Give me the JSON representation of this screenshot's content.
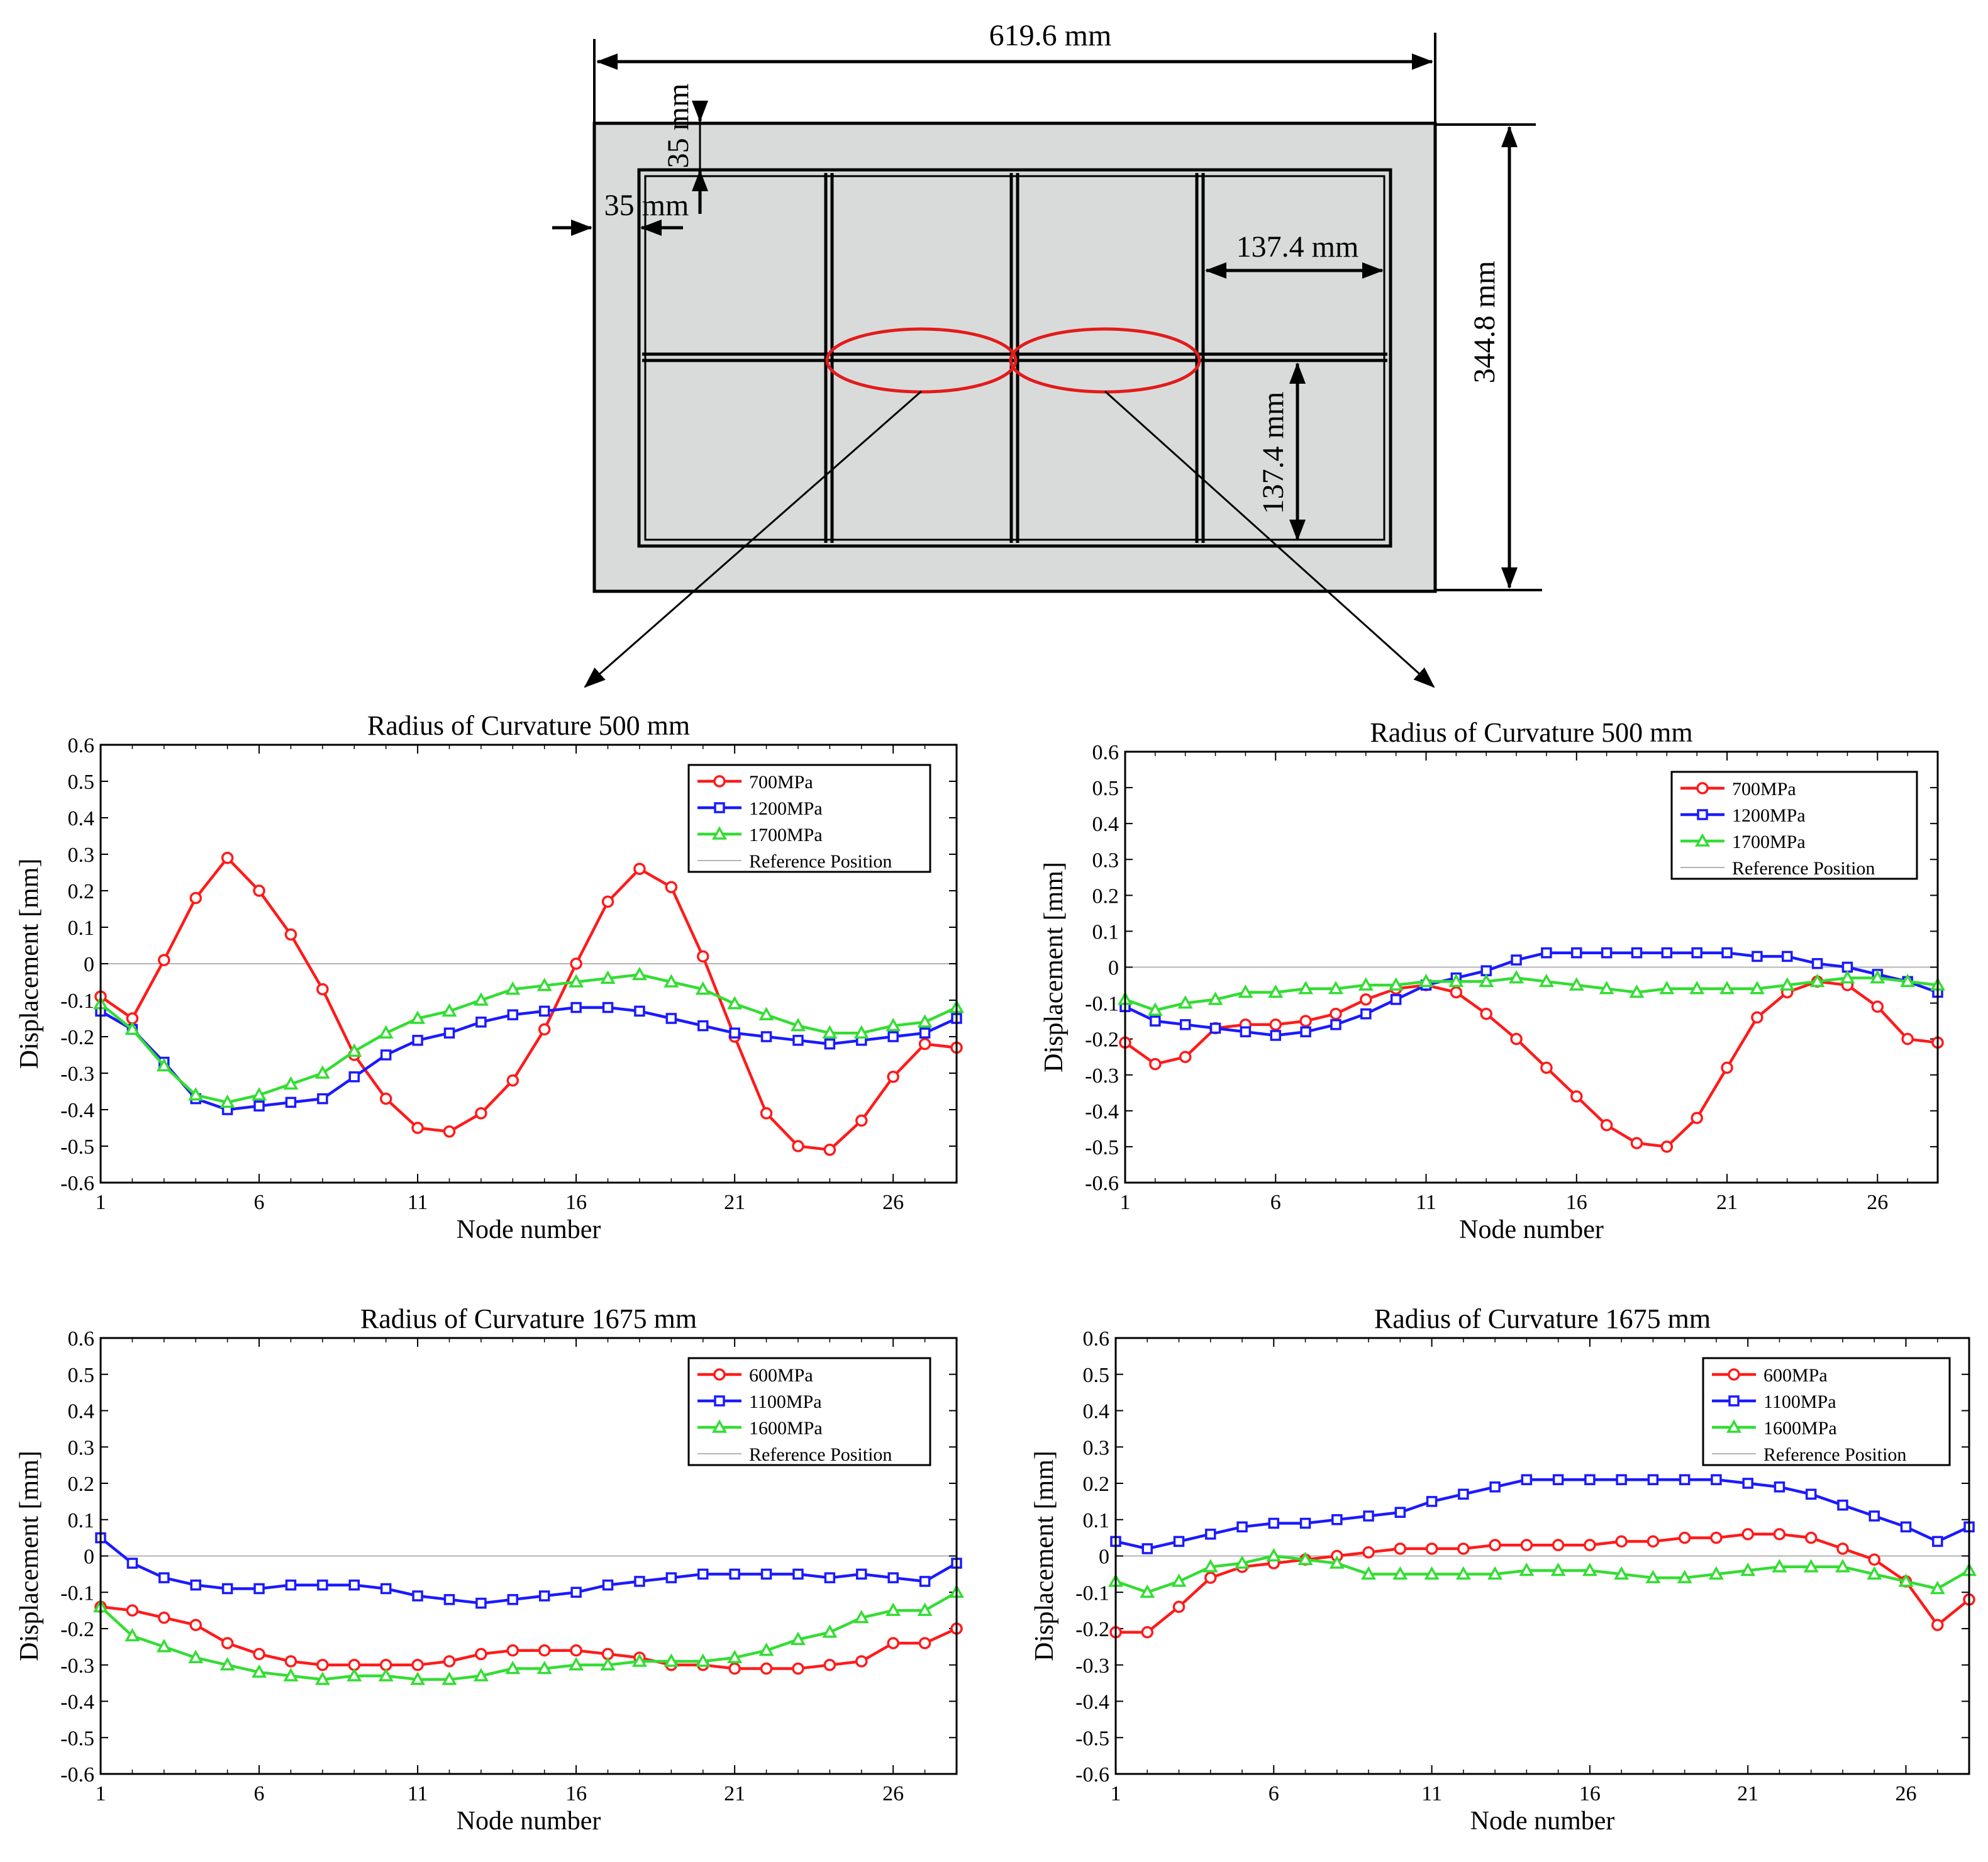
{
  "schematic": {
    "dim_width": "619.6 mm",
    "dim_height": "344.8 mm",
    "dim_margin_top": "35 mm",
    "dim_margin_left": "35 mm",
    "dim_cell_width": "137.4 mm",
    "dim_cell_height": "137.4 mm",
    "plate_color": "#d9dbdb",
    "highlight_color": "#e31b1b"
  },
  "colors": {
    "red": "#ff1a1a",
    "blue": "#1a1aff",
    "green": "#33dd33",
    "reference": "#b4b4b4"
  },
  "chart_data": [
    {
      "type": "line",
      "title": "Radius of Curvature 500 mm",
      "xlabel": "Node number",
      "ylabel": "Displacement [mm]",
      "xlim": [
        1,
        28
      ],
      "ylim": [
        -0.6,
        0.6
      ],
      "xticks": [
        1,
        6,
        11,
        16,
        21,
        26
      ],
      "yticks": [
        "0.6",
        "0.5",
        "0.4",
        "0.3",
        "0.2",
        "0.1",
        "0",
        "-0.1",
        "-0.2",
        "-0.3",
        "-0.4",
        "-0.5",
        "-0.6"
      ],
      "legend_position": "top-right",
      "reference_label": "Reference Position",
      "x": [
        1,
        2,
        3,
        4,
        5,
        6,
        7,
        8,
        9,
        10,
        11,
        12,
        13,
        14,
        15,
        16,
        17,
        18,
        19,
        20,
        21,
        22,
        23,
        24,
        25,
        26,
        27,
        28
      ],
      "series": [
        {
          "name": "700MPa",
          "color": "red",
          "marker": "circle",
          "values": [
            -0.09,
            -0.15,
            0.01,
            0.18,
            0.29,
            0.2,
            0.08,
            -0.07,
            -0.25,
            -0.37,
            -0.45,
            -0.46,
            -0.41,
            -0.32,
            -0.18,
            0.0,
            0.17,
            0.26,
            0.21,
            0.02,
            -0.2,
            -0.41,
            -0.5,
            -0.51,
            -0.43,
            -0.31,
            -0.22,
            -0.23
          ]
        },
        {
          "name": "1200MPa",
          "color": "blue",
          "marker": "square",
          "values": [
            -0.13,
            -0.18,
            -0.27,
            -0.37,
            -0.4,
            -0.39,
            -0.38,
            -0.37,
            -0.31,
            -0.25,
            -0.21,
            -0.19,
            -0.16,
            -0.14,
            -0.13,
            -0.12,
            -0.12,
            -0.13,
            -0.15,
            -0.17,
            -0.19,
            -0.2,
            -0.21,
            -0.22,
            -0.21,
            -0.2,
            -0.19,
            -0.15
          ]
        },
        {
          "name": "1700MPa",
          "color": "green",
          "marker": "triangle",
          "values": [
            -0.11,
            -0.18,
            -0.28,
            -0.36,
            -0.38,
            -0.36,
            -0.33,
            -0.3,
            -0.24,
            -0.19,
            -0.15,
            -0.13,
            -0.1,
            -0.07,
            -0.06,
            -0.05,
            -0.04,
            -0.03,
            -0.05,
            -0.07,
            -0.11,
            -0.14,
            -0.17,
            -0.19,
            -0.19,
            -0.17,
            -0.16,
            -0.12
          ]
        }
      ]
    },
    {
      "type": "line",
      "title": "Radius of Curvature 500 mm",
      "xlabel": "Node number",
      "ylabel": "Displacement [mm]",
      "xlim": [
        1,
        28
      ],
      "ylim": [
        -0.6,
        0.6
      ],
      "xticks": [
        1,
        6,
        11,
        16,
        21,
        26
      ],
      "yticks": [
        "0.6",
        "0.5",
        "0.4",
        "0.3",
        "0.2",
        "0.1",
        "0",
        "-0.1",
        "-0.2",
        "-0.3",
        "-0.4",
        "-0.5",
        "-0.6"
      ],
      "legend_position": "top-right",
      "reference_label": "Reference Position",
      "x": [
        1,
        2,
        3,
        4,
        5,
        6,
        7,
        8,
        9,
        10,
        11,
        12,
        13,
        14,
        15,
        16,
        17,
        18,
        19,
        20,
        21,
        22,
        23,
        24,
        25,
        26,
        27,
        28
      ],
      "series": [
        {
          "name": "700MPa",
          "color": "red",
          "marker": "circle",
          "values": [
            -0.21,
            -0.27,
            -0.25,
            -0.17,
            -0.16,
            -0.16,
            -0.15,
            -0.13,
            -0.09,
            -0.06,
            -0.05,
            -0.07,
            -0.13,
            -0.2,
            -0.28,
            -0.36,
            -0.44,
            -0.49,
            -0.5,
            -0.42,
            -0.28,
            -0.14,
            -0.07,
            -0.04,
            -0.05,
            -0.11,
            -0.2,
            -0.21
          ]
        },
        {
          "name": "1200MPa",
          "color": "blue",
          "marker": "square",
          "values": [
            -0.11,
            -0.15,
            -0.16,
            -0.17,
            -0.18,
            -0.19,
            -0.18,
            -0.16,
            -0.13,
            -0.09,
            -0.05,
            -0.03,
            -0.01,
            0.02,
            0.04,
            0.04,
            0.04,
            0.04,
            0.04,
            0.04,
            0.04,
            0.03,
            0.03,
            0.01,
            0.0,
            -0.02,
            -0.04,
            -0.07
          ]
        },
        {
          "name": "1700MPa",
          "color": "green",
          "marker": "triangle",
          "values": [
            -0.09,
            -0.12,
            -0.1,
            -0.09,
            -0.07,
            -0.07,
            -0.06,
            -0.06,
            -0.05,
            -0.05,
            -0.04,
            -0.04,
            -0.04,
            -0.03,
            -0.04,
            -0.05,
            -0.06,
            -0.07,
            -0.06,
            -0.06,
            -0.06,
            -0.06,
            -0.05,
            -0.04,
            -0.03,
            -0.03,
            -0.04,
            -0.05
          ]
        }
      ]
    },
    {
      "type": "line",
      "title": "Radius of Curvature 1675 mm",
      "xlabel": "Node number",
      "ylabel": "Displacement [mm]",
      "xlim": [
        1,
        28
      ],
      "ylim": [
        -0.6,
        0.6
      ],
      "xticks": [
        1,
        6,
        11,
        16,
        21,
        26
      ],
      "yticks": [
        "0.6",
        "0.5",
        "0.4",
        "0.3",
        "0.2",
        "0.1",
        "0",
        "-0.1",
        "-0.2",
        "-0.3",
        "-0.4",
        "-0.5",
        "-0.6"
      ],
      "legend_position": "top-right",
      "reference_label": "Reference Position",
      "x": [
        1,
        2,
        3,
        4,
        5,
        6,
        7,
        8,
        9,
        10,
        11,
        12,
        13,
        14,
        15,
        16,
        17,
        18,
        19,
        20,
        21,
        22,
        23,
        24,
        25,
        26,
        27,
        28
      ],
      "series": [
        {
          "name": "600MPa",
          "color": "red",
          "marker": "circle",
          "values": [
            -0.14,
            -0.15,
            -0.17,
            -0.19,
            -0.24,
            -0.27,
            -0.29,
            -0.3,
            -0.3,
            -0.3,
            -0.3,
            -0.29,
            -0.27,
            -0.26,
            -0.26,
            -0.26,
            -0.27,
            -0.28,
            -0.3,
            -0.3,
            -0.31,
            -0.31,
            -0.31,
            -0.3,
            -0.29,
            -0.24,
            -0.24,
            -0.2
          ]
        },
        {
          "name": "1100MPa",
          "color": "blue",
          "marker": "square",
          "values": [
            0.05,
            -0.02,
            -0.06,
            -0.08,
            -0.09,
            -0.09,
            -0.08,
            -0.08,
            -0.08,
            -0.09,
            -0.11,
            -0.12,
            -0.13,
            -0.12,
            -0.11,
            -0.1,
            -0.08,
            -0.07,
            -0.06,
            -0.05,
            -0.05,
            -0.05,
            -0.05,
            -0.06,
            -0.05,
            -0.06,
            -0.07,
            -0.02
          ]
        },
        {
          "name": "1600MPa",
          "color": "green",
          "marker": "triangle",
          "values": [
            -0.14,
            -0.22,
            -0.25,
            -0.28,
            -0.3,
            -0.32,
            -0.33,
            -0.34,
            -0.33,
            -0.33,
            -0.34,
            -0.34,
            -0.33,
            -0.31,
            -0.31,
            -0.3,
            -0.3,
            -0.29,
            -0.29,
            -0.29,
            -0.28,
            -0.26,
            -0.23,
            -0.21,
            -0.17,
            -0.15,
            -0.15,
            -0.1
          ]
        }
      ]
    },
    {
      "type": "line",
      "title": "Radius of Curvature 1675 mm",
      "xlabel": "Node number",
      "ylabel": "Displacement [mm]",
      "xlim": [
        1,
        28
      ],
      "ylim": [
        -0.6,
        0.6
      ],
      "xticks": [
        1,
        6,
        11,
        16,
        21,
        26
      ],
      "yticks": [
        "0.6",
        "0.5",
        "0.4",
        "0.3",
        "0.2",
        "0.1",
        "0",
        "-0.1",
        "-0.2",
        "-0.3",
        "-0.4",
        "-0.5",
        "-0.6"
      ],
      "legend_position": "top-right",
      "reference_label": "Reference Position",
      "x": [
        1,
        2,
        3,
        4,
        5,
        6,
        7,
        8,
        9,
        10,
        11,
        12,
        13,
        14,
        15,
        16,
        17,
        18,
        19,
        20,
        21,
        22,
        23,
        24,
        25,
        26,
        27,
        28
      ],
      "series": [
        {
          "name": "600MPa",
          "color": "red",
          "marker": "circle",
          "values": [
            -0.21,
            -0.21,
            -0.14,
            -0.06,
            -0.03,
            -0.02,
            -0.01,
            0.0,
            0.01,
            0.02,
            0.02,
            0.02,
            0.03,
            0.03,
            0.03,
            0.03,
            0.04,
            0.04,
            0.05,
            0.05,
            0.06,
            0.06,
            0.05,
            0.02,
            -0.01,
            -0.07,
            -0.19,
            -0.12
          ]
        },
        {
          "name": "1100MPa",
          "color": "blue",
          "marker": "square",
          "values": [
            0.04,
            0.02,
            0.04,
            0.06,
            0.08,
            0.09,
            0.09,
            0.1,
            0.11,
            0.12,
            0.15,
            0.17,
            0.19,
            0.21,
            0.21,
            0.21,
            0.21,
            0.21,
            0.21,
            0.21,
            0.2,
            0.19,
            0.17,
            0.14,
            0.11,
            0.08,
            0.04,
            0.08
          ]
        },
        {
          "name": "1600MPa",
          "color": "green",
          "marker": "triangle",
          "values": [
            -0.07,
            -0.1,
            -0.07,
            -0.03,
            -0.02,
            0.0,
            -0.01,
            -0.02,
            -0.05,
            -0.05,
            -0.05,
            -0.05,
            -0.05,
            -0.04,
            -0.04,
            -0.04,
            -0.05,
            -0.06,
            -0.06,
            -0.05,
            -0.04,
            -0.03,
            -0.03,
            -0.03,
            -0.05,
            -0.07,
            -0.09,
            -0.04
          ]
        }
      ]
    }
  ]
}
